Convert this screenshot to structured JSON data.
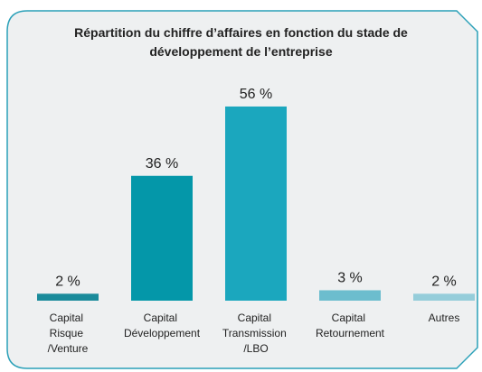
{
  "chart_data": {
    "type": "bar",
    "title": "Répartition du chiffre d’affaires en fonction du stade de développement de l’entreprise",
    "categories": [
      "Capital Risque /Venture",
      "Capital Développement",
      "Capital Transmission /LBO",
      "Capital Retournement",
      "Autres"
    ],
    "values": [
      2,
      36,
      56,
      3,
      2
    ],
    "value_labels": [
      "2 %",
      "36 %",
      "56 %",
      "3 %",
      "2 %"
    ],
    "colors": [
      "#1a8b9b",
      "#0497a9",
      "#1ba7be",
      "#6cbdce",
      "#95cdda"
    ]
  }
}
